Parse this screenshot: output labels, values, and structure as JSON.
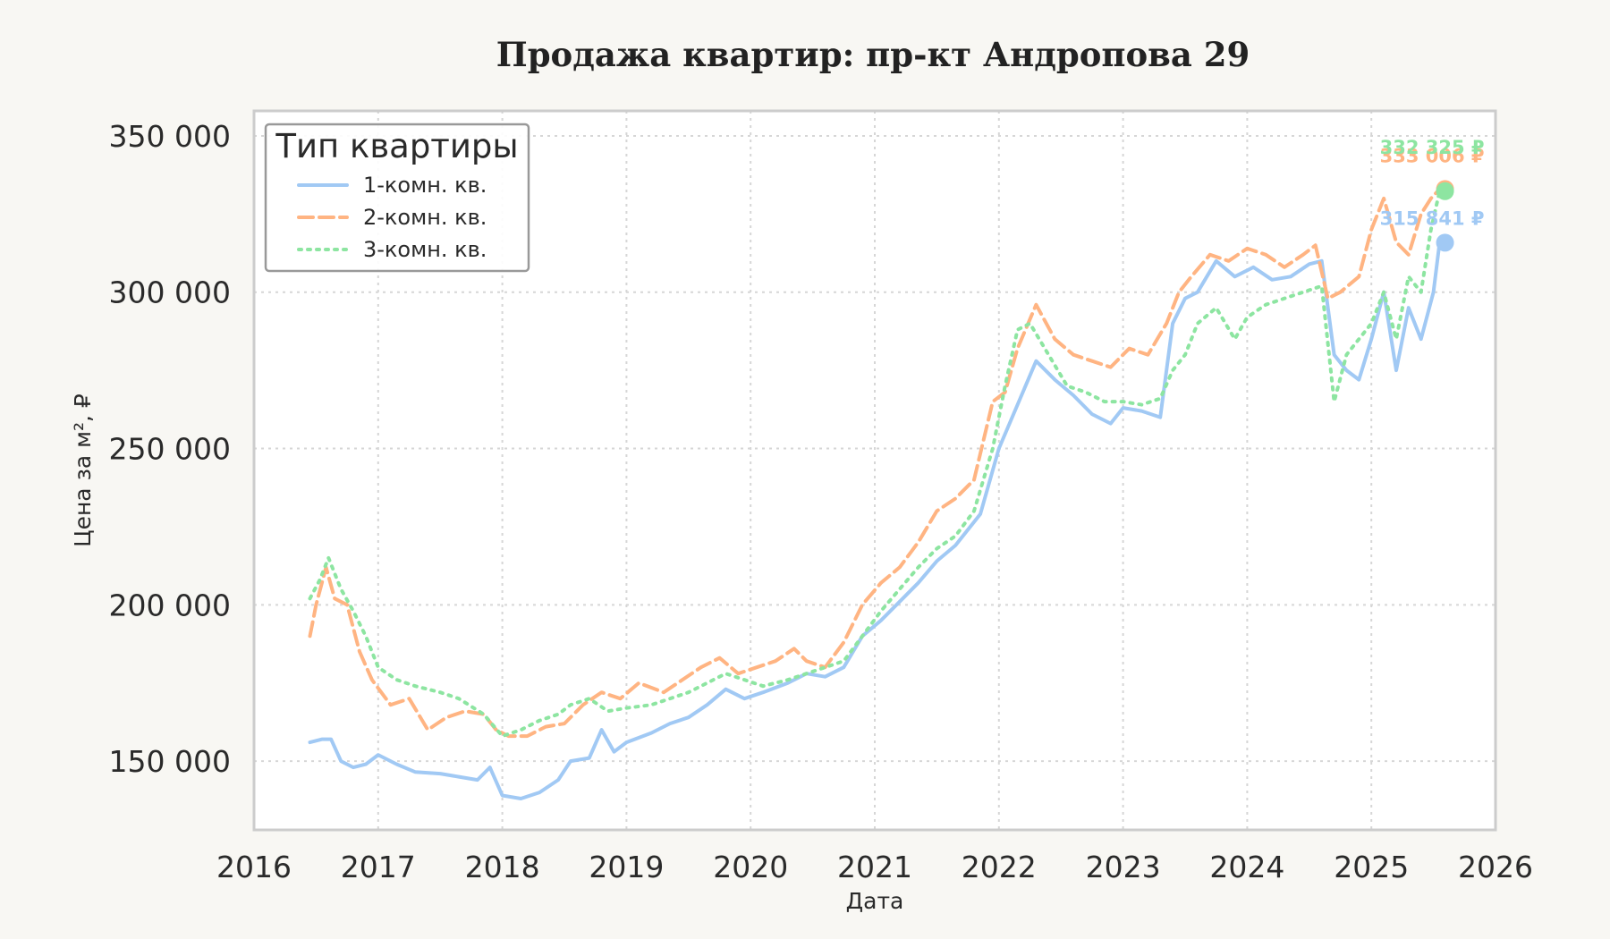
{
  "chart_data": {
    "type": "line",
    "title": "Продажа квартир: пр-кт Андропова 29",
    "xlabel": "Дата",
    "ylabel": "Цена за м², ₽",
    "xlim": [
      2016,
      2026
    ],
    "ylim": [
      128000,
      358000
    ],
    "x_ticks": [
      "2016",
      "2017",
      "2018",
      "2019",
      "2020",
      "2021",
      "2022",
      "2023",
      "2024",
      "2025",
      "2026"
    ],
    "y_ticks": [
      150000,
      200000,
      250000,
      300000,
      350000
    ],
    "y_tick_labels": [
      "150 000",
      "200 000",
      "250 000",
      "300 000",
      "350 000"
    ],
    "grid": true,
    "legend": {
      "title": "Тип квартиры",
      "placement": "top-left"
    },
    "series": [
      {
        "name": "1-комн. кв.",
        "color": "#a1c9f4",
        "style": "solid",
        "end_label": "315 841 ₽",
        "end_value": 315841,
        "x": [
          2016.45,
          2016.55,
          2016.62,
          2016.7,
          2016.8,
          2016.9,
          2017.0,
          2017.15,
          2017.3,
          2017.5,
          2017.65,
          2017.8,
          2017.9,
          2018.0,
          2018.15,
          2018.3,
          2018.45,
          2018.55,
          2018.7,
          2018.8,
          2018.9,
          2019.0,
          2019.2,
          2019.35,
          2019.5,
          2019.65,
          2019.8,
          2019.95,
          2020.1,
          2020.3,
          2020.45,
          2020.6,
          2020.75,
          2020.9,
          2021.05,
          2021.2,
          2021.35,
          2021.5,
          2021.65,
          2021.75,
          2021.85,
          2022.0,
          2022.15,
          2022.3,
          2022.45,
          2022.6,
          2022.75,
          2022.9,
          2023.0,
          2023.15,
          2023.3,
          2023.4,
          2023.5,
          2023.6,
          2023.75,
          2023.9,
          2024.05,
          2024.2,
          2024.35,
          2024.5,
          2024.6,
          2024.7,
          2024.8,
          2024.9,
          2025.0,
          2025.1,
          2025.2,
          2025.3,
          2025.4,
          2025.5,
          2025.55
        ],
        "values": [
          156000,
          157000,
          157000,
          150000,
          148000,
          149000,
          152000,
          149000,
          146500,
          146000,
          145000,
          144000,
          148000,
          139000,
          138000,
          140000,
          144000,
          150000,
          151000,
          160000,
          153000,
          156000,
          159000,
          162000,
          164000,
          168000,
          173000,
          170000,
          172000,
          175000,
          178000,
          177000,
          180000,
          190000,
          195000,
          201000,
          207000,
          214000,
          219000,
          224000,
          229000,
          250000,
          264000,
          278000,
          272000,
          267000,
          261000,
          258000,
          263000,
          262000,
          260000,
          290000,
          298000,
          300000,
          310000,
          305000,
          308000,
          304000,
          305000,
          309000,
          310000,
          280000,
          275000,
          272000,
          285000,
          300000,
          275000,
          295000,
          285000,
          300000,
          315841
        ]
      },
      {
        "name": "2-комн. кв.",
        "color": "#ffb482",
        "style": "dashed",
        "end_label": "333 006 ₽",
        "end_value": 333006,
        "x": [
          2016.45,
          2016.5,
          2016.58,
          2016.65,
          2016.75,
          2016.85,
          2016.95,
          2017.1,
          2017.25,
          2017.4,
          2017.55,
          2017.7,
          2017.85,
          2017.95,
          2018.05,
          2018.2,
          2018.35,
          2018.5,
          2018.65,
          2018.8,
          2018.95,
          2019.1,
          2019.3,
          2019.45,
          2019.6,
          2019.75,
          2019.9,
          2020.05,
          2020.2,
          2020.35,
          2020.45,
          2020.6,
          2020.75,
          2020.9,
          2021.05,
          2021.2,
          2021.35,
          2021.5,
          2021.65,
          2021.8,
          2021.95,
          2022.05,
          2022.15,
          2022.3,
          2022.45,
          2022.6,
          2022.75,
          2022.9,
          2023.05,
          2023.2,
          2023.35,
          2023.45,
          2023.55,
          2023.7,
          2023.85,
          2024.0,
          2024.15,
          2024.3,
          2024.45,
          2024.55,
          2024.65,
          2024.75,
          2024.9,
          2025.0,
          2025.1,
          2025.2,
          2025.3,
          2025.4,
          2025.48,
          2025.55
        ],
        "values": [
          190000,
          200000,
          212000,
          202000,
          200000,
          185000,
          176000,
          168000,
          170000,
          160000,
          164000,
          166000,
          165000,
          160000,
          158000,
          158000,
          161000,
          162000,
          168000,
          172000,
          170000,
          175000,
          172000,
          176000,
          180000,
          183000,
          178000,
          180000,
          182000,
          186000,
          182000,
          180000,
          188000,
          200000,
          207000,
          212000,
          220000,
          230000,
          234000,
          240000,
          265000,
          268000,
          282000,
          296000,
          285000,
          280000,
          278000,
          276000,
          282000,
          280000,
          290000,
          300000,
          305000,
          312000,
          310000,
          314000,
          312000,
          308000,
          312000,
          315000,
          298000,
          300000,
          305000,
          320000,
          330000,
          316000,
          312000,
          325000,
          330000,
          333006
        ]
      },
      {
        "name": "3-комн. кв.",
        "color": "#8de5a1",
        "style": "dotted",
        "end_label": "332 325 ₽",
        "end_value": 332325,
        "x": [
          2016.45,
          2016.53,
          2016.6,
          2016.7,
          2016.8,
          2016.9,
          2017.0,
          2017.15,
          2017.3,
          2017.5,
          2017.65,
          2017.85,
          2018.0,
          2018.15,
          2018.3,
          2018.45,
          2018.55,
          2018.7,
          2018.85,
          2019.0,
          2019.2,
          2019.35,
          2019.5,
          2019.65,
          2019.8,
          2019.95,
          2020.1,
          2020.3,
          2020.45,
          2020.6,
          2020.75,
          2020.9,
          2021.05,
          2021.2,
          2021.35,
          2021.5,
          2021.65,
          2021.8,
          2021.95,
          2022.05,
          2022.15,
          2022.25,
          2022.4,
          2022.55,
          2022.7,
          2022.85,
          2023.0,
          2023.15,
          2023.3,
          2023.4,
          2023.5,
          2023.6,
          2023.75,
          2023.9,
          2024.0,
          2024.15,
          2024.3,
          2024.45,
          2024.6,
          2024.7,
          2024.8,
          2024.9,
          2025.0,
          2025.1,
          2025.2,
          2025.3,
          2025.4,
          2025.48,
          2025.55
        ],
        "values": [
          202000,
          208000,
          215000,
          205000,
          198000,
          190000,
          180000,
          176000,
          174000,
          172000,
          170000,
          165000,
          158000,
          160000,
          163000,
          165000,
          168000,
          170000,
          166000,
          167000,
          168000,
          170000,
          172000,
          175000,
          178000,
          176000,
          174000,
          176000,
          178000,
          180000,
          182000,
          190000,
          198000,
          205000,
          212000,
          218000,
          222000,
          230000,
          250000,
          270000,
          288000,
          290000,
          280000,
          270000,
          268000,
          265000,
          265000,
          264000,
          266000,
          275000,
          280000,
          290000,
          295000,
          285000,
          292000,
          296000,
          298000,
          300000,
          302000,
          265000,
          280000,
          285000,
          290000,
          300000,
          285000,
          305000,
          300000,
          320000,
          332325
        ]
      }
    ]
  }
}
